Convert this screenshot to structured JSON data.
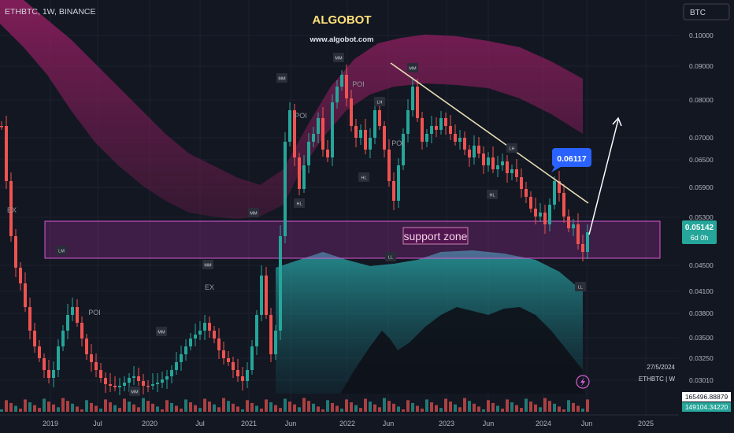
{
  "header": {
    "symbol": "ETHBTC, 1W, BINANCE",
    "brand": "ALGOBOT",
    "website": "www.algobot.com",
    "currency_button": "BTC"
  },
  "chart_data": {
    "type": "candlestick",
    "y_scale": "log",
    "ylim": [
      0.0295,
      0.111
    ],
    "y_ticks": [
      "0.10000",
      "0.09000",
      "0.08000",
      "0.07000",
      "0.06500",
      "0.05900",
      "0.05300",
      "0.04500",
      "0.04100",
      "0.03800",
      "0.03500",
      "0.03250",
      "0.03010"
    ],
    "x_ticks": [
      "2019",
      "Jul",
      "2020",
      "Jul",
      "2021",
      "Jun",
      "2022",
      "Jun",
      "2023",
      "Jun",
      "2024",
      "Jun",
      "2025"
    ],
    "last_price": "0.05142",
    "countdown": "6d 0h",
    "callout_price": "0.06117",
    "support_zone_label": "support zone",
    "pivot_labels": [
      "MM",
      "MM",
      "MM",
      "MM",
      "MM",
      "MM",
      "MM",
      "LH",
      "HL",
      "HL",
      "HL",
      "LL",
      "LL",
      "LM",
      "LH",
      "EX",
      "EX",
      "POI",
      "POI",
      "POI",
      "POI"
    ],
    "footer_date": "27/5/2024",
    "footer_symbol": "ETHBTC | W",
    "volume_values": [
      "165496.88879",
      "149104.34220"
    ],
    "colors": {
      "up": "#26a69a",
      "down": "#ef5350",
      "upper_band": "#8e1f5e",
      "lower_band": "#1e9aa0",
      "zone_border": "#d65bd3",
      "trendline": "#e6dcb4",
      "callout": "#2962ff"
    }
  }
}
